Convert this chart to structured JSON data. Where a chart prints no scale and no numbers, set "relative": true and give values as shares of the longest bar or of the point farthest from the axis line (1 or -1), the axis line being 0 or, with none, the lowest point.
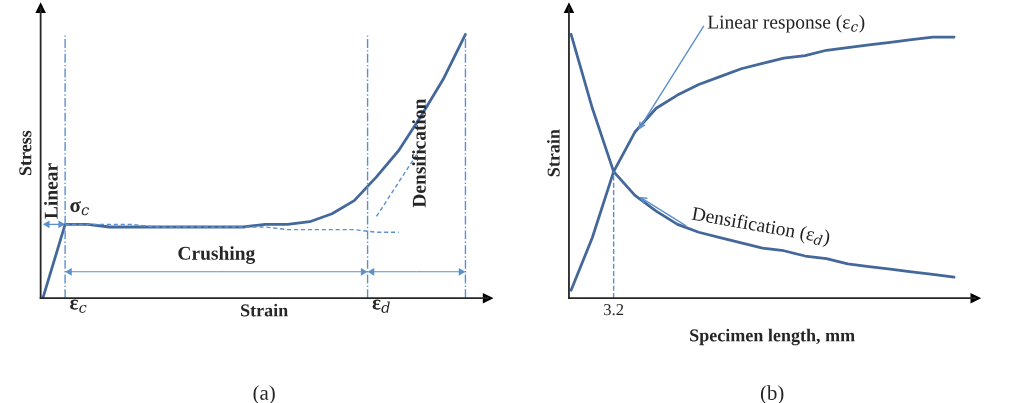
{
  "chart_data": [
    {
      "type": "line",
      "relative": true,
      "xlabel": "Strain",
      "ylabel": "Stress",
      "legend": false,
      "marker": "none",
      "categories": [
        null,
        null,
        null,
        null,
        null,
        null,
        null,
        null,
        null,
        null,
        null,
        null,
        null,
        null,
        null,
        null,
        null,
        null,
        null,
        null
      ],
      "series": [
        {
          "color": "#44689a",
          "line_style": "solid",
          "values": [
            0,
            0.28,
            0.28,
            0.27,
            0.27,
            0.27,
            0.27,
            0.27,
            0.27,
            0.27,
            0.28,
            0.28,
            0.29,
            0.32,
            0.37,
            0.46,
            0.56,
            0.69,
            0.83,
            1.0
          ]
        },
        {
          "color": "#5b8fd0",
          "line_style": "dashed",
          "values": [
            null,
            0.28,
            0.28,
            0.28,
            0.28,
            0.27,
            0.27,
            0.27,
            0.27,
            0.27,
            0.27,
            0.26,
            0.26,
            0.26,
            0.26,
            0.25,
            0.25,
            null,
            null,
            null
          ]
        },
        {
          "color": "#5b8fd0",
          "line_style": "dashed",
          "values": [
            null,
            null,
            null,
            null,
            null,
            null,
            null,
            null,
            null,
            null,
            null,
            null,
            null,
            null,
            null,
            0.31,
            0.44,
            0.57,
            null,
            null
          ]
        }
      ],
      "annotations": [
        "Linear",
        "σ$_{c}$",
        "Crushing",
        "Densification",
        "(a)",
        "ε$_{c}$",
        "ε$_{d}$"
      ]
    },
    {
      "type": "line",
      "relative": true,
      "xlabel": "Specimen length, mm",
      "ylabel": "Strain",
      "legend": false,
      "marker": "none",
      "categories": [
        null,
        null,
        null,
        null,
        null,
        null,
        null,
        null,
        null,
        null,
        null,
        null,
        null,
        null,
        null,
        null,
        null,
        null,
        null
      ],
      "series": [
        {
          "name": "Linear response (ε$_{c}$)",
          "color": "#44689a",
          "line_style": "solid",
          "values": [
            0.03,
            0.23,
            0.48,
            0.63,
            0.72,
            0.77,
            0.81,
            0.84,
            0.87,
            0.89,
            0.91,
            0.92,
            0.94,
            0.95,
            0.96,
            0.97,
            0.98,
            0.99,
            0.99
          ]
        },
        {
          "name": "Densification (ε$_{d}$)",
          "color": "#44689a",
          "line_style": "solid",
          "values": [
            1.0,
            0.72,
            0.48,
            0.39,
            0.33,
            0.28,
            0.25,
            0.23,
            0.21,
            0.19,
            0.18,
            0.16,
            0.15,
            0.13,
            0.12,
            0.11,
            0.1,
            0.09,
            0.08
          ]
        }
      ],
      "annotations": [
        "(b)",
        "3.2"
      ]
    }
  ]
}
